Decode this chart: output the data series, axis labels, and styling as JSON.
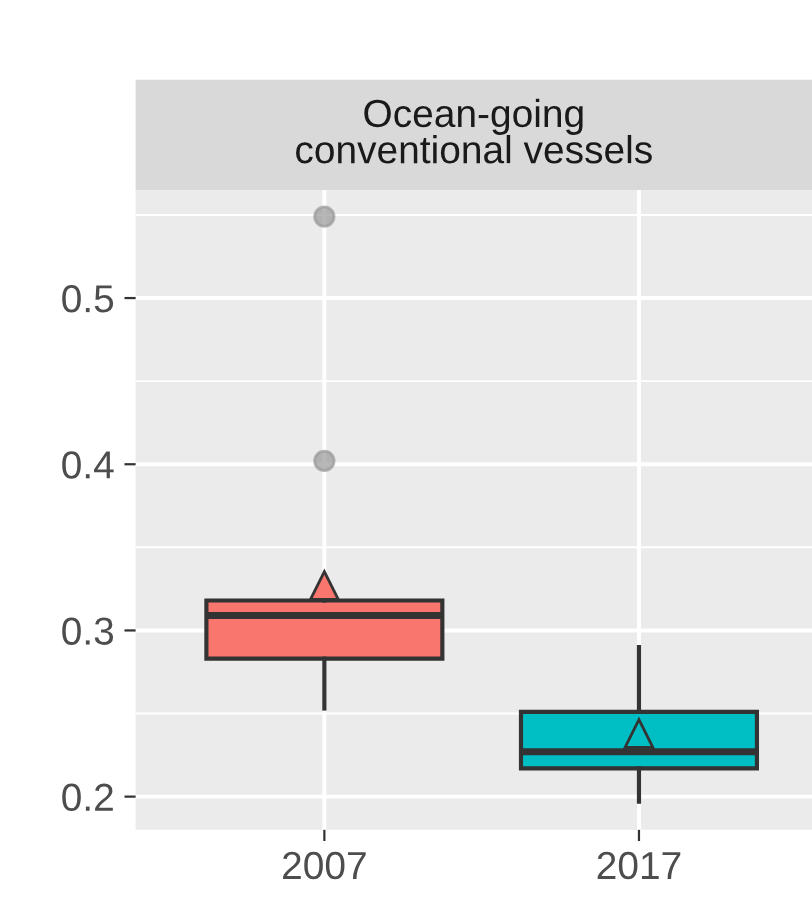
{
  "chart_data": {
    "type": "box",
    "title": "Ocean-going\nconventional vessels",
    "categories": [
      "2007",
      "2017"
    ],
    "boxes": [
      {
        "low": 0.253,
        "q1": 0.283,
        "median": 0.309,
        "q3": 0.318,
        "high": 0.318,
        "mean": 0.327,
        "outliers": [
          0.402,
          0.549
        ]
      },
      {
        "low": 0.197,
        "q1": 0.217,
        "median": 0.227,
        "q3": 0.251,
        "high": 0.29,
        "mean": 0.238
      }
    ],
    "colors": [
      "#f8766d",
      "#00bfc4"
    ],
    "ylim": [
      0.18,
      0.565
    ],
    "yticks": [
      0.2,
      0.3,
      0.4,
      0.5
    ],
    "grid": true,
    "legend": false
  }
}
